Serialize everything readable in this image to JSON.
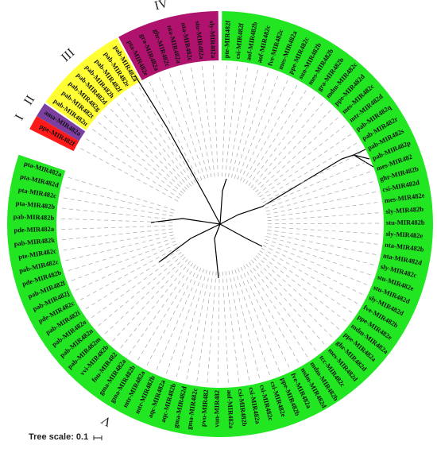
{
  "clades": [
    {
      "label": "V",
      "leaves": [
        "pte-MIR482f",
        "csi-MIR482f",
        "aof-MIR482b",
        "aof-MIR482c",
        "fve-MIR482c",
        "mes-MIR482a",
        "ppe-MIR482c",
        "sun-MIR482b",
        "mes-MIR482b",
        "gra-MIR482b",
        "mdm-MIR482c",
        "ppe-MIR482d",
        "mes-MIR482c",
        "mtr-MIR482d",
        "pab-MIR482q",
        "pab-MIR482r",
        "pab-MIR482s",
        "pab-MIR482p",
        "mes-MIR482",
        "ghr-MIR482b",
        "csi-MIR482d",
        "mes-MIR482e",
        "sly-MIR482b",
        "stu-MIR482b",
        "sly-MIR482e",
        "nta-MIR482b",
        "nta-MIR482d",
        "sly-MIR482c",
        "stu-MIR482e",
        "stu-MIR482d",
        "sly-MIR482d",
        "fve-MIR482b",
        "ppe-MIR482e",
        "mdm-MIR482a",
        "ppe-MIR482a",
        "ghr-MIR482d",
        "mes-MIR482d",
        "tcc-MIR482c",
        "mdm-MIR482b",
        "mdm-MIR482d",
        "fve-MIR482a",
        "ppe-MIR482b",
        "csi-MIR482e",
        "csi-MIR482c",
        "csi-MIR482a",
        "csi-MIR482b",
        "aof-MIR482a",
        "vun-MIR482",
        "pvu-MIR482",
        "gma-MIR482c",
        "gma-MIR482d",
        "aqc-MIR482b",
        "aqc-MIR482a",
        "mtr-MIR482b",
        "mtr-MIR482a",
        "gma-MIR482b",
        "gma-MIR482a",
        "fnu-MIR482",
        "vvi-MIR482b",
        "pab-MIR482m",
        "pab-MIR482n",
        "pab-MIR482o",
        "pab-MIR482i",
        "pde-MIR482c",
        "pab-MIR482j",
        "pab-MIR482l",
        "pde-MIR482b",
        "pab-MIR482c",
        "pte-MIR482c",
        "pab-MIR482k",
        "pde-MIR482a",
        "pab-MIR482b",
        "pta-MIR482b",
        "pta-MIR482c",
        "pta-MIR482d",
        "pta-MIR482a"
      ]
    },
    {
      "label": "I",
      "leaves": [
        "ppe-MIR482f"
      ]
    },
    {
      "label": "II",
      "leaves": [
        "ama-MIR482a"
      ]
    },
    {
      "label": "III",
      "leaves": [
        "pab-MIR482u",
        "pab-MIR482t",
        "pab-MIR482g",
        "pab-MIR482d",
        "pab-MIR482h",
        "pab-MIR482f",
        "pab-MIR482e",
        "pab-MIR482a"
      ]
    },
    {
      "label": "IV",
      "leaves": [
        "pta-MIR482e",
        "gra-MIR482a",
        "ghr-MIR482c",
        "nta-MIR482a",
        "nta-MIR482c",
        "stu-MIR482a",
        "sly-MIR482a"
      ]
    }
  ],
  "tree_scale": "Tree scale: 0.1"
}
